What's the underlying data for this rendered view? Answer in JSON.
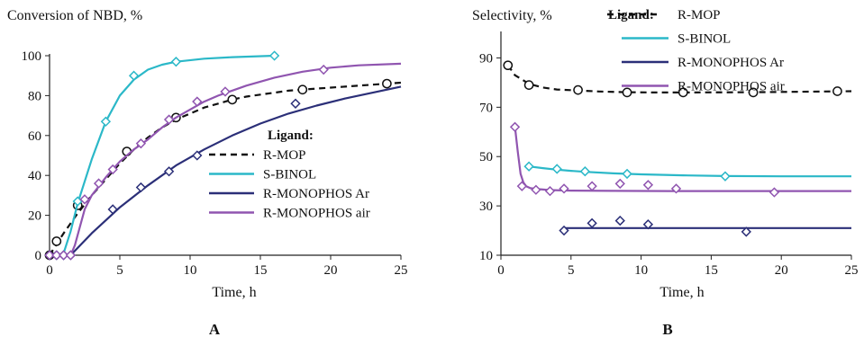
{
  "colors": {
    "R-MOP": "#111111",
    "S-BINOL": "#2bb8c8",
    "R-MONOPHOS Ar": "#2b2f78",
    "R-MONOPHOS air": "#9055b0"
  },
  "markers": {
    "R-MOP": "circle",
    "S-BINOL": "diamond",
    "R-MONOPHOS Ar": "diamond",
    "R-MONOPHOS air": "diamond"
  },
  "chart_data": [
    {
      "panel_label": "A",
      "type": "line",
      "title": "Conversion of NBD, %",
      "xlabel": "Time, h",
      "ylabel": "",
      "xlim": [
        0,
        25
      ],
      "ylim": [
        0,
        100
      ],
      "xticks": [
        "0",
        "5",
        "10",
        "15",
        "20",
        "25"
      ],
      "yticks": [
        "0",
        "20",
        "40",
        "60",
        "80",
        "100"
      ],
      "legend": {
        "title": "Ligand:",
        "placement": "bottom-right",
        "entries": [
          "R-MOP",
          "S-BINOL",
          "R-MONOPHOS Ar",
          "R-MONOPHOS air"
        ]
      },
      "series": [
        {
          "name": "R-MOP",
          "style": "dashed",
          "points": [
            [
              0,
              0
            ],
            [
              0.5,
              7
            ],
            [
              2,
              25
            ],
            [
              5.5,
              52
            ],
            [
              9,
              69
            ],
            [
              13,
              78
            ],
            [
              18,
              83
            ],
            [
              24,
              86
            ]
          ],
          "curve": [
            [
              0,
              0
            ],
            [
              1,
              11
            ],
            [
              2,
              21
            ],
            [
              3,
              30
            ],
            [
              4,
              38
            ],
            [
              5,
              46
            ],
            [
              6,
              53
            ],
            [
              7,
              59
            ],
            [
              8,
              64
            ],
            [
              9,
              68
            ],
            [
              10,
              71
            ],
            [
              11,
              74
            ],
            [
              12,
              76
            ],
            [
              13,
              78
            ],
            [
              14,
              79.5
            ],
            [
              15,
              80.5
            ],
            [
              16,
              81.5
            ],
            [
              17,
              82.5
            ],
            [
              18,
              83
            ],
            [
              20,
              84
            ],
            [
              22,
              85
            ],
            [
              25,
              86.5
            ]
          ]
        },
        {
          "name": "S-BINOL",
          "style": "solid",
          "points": [
            [
              0,
              0
            ],
            [
              0.5,
              0
            ],
            [
              1,
              0
            ],
            [
              2,
              27
            ],
            [
              4,
              67
            ],
            [
              6,
              90
            ],
            [
              9,
              97
            ],
            [
              16,
              100
            ]
          ],
          "curve": [
            [
              0,
              0
            ],
            [
              0.8,
              0
            ],
            [
              1,
              1
            ],
            [
              1.5,
              12
            ],
            [
              2,
              26
            ],
            [
              3,
              48
            ],
            [
              4,
              67
            ],
            [
              5,
              80
            ],
            [
              6,
              88
            ],
            [
              7,
              93
            ],
            [
              8,
              95.5
            ],
            [
              9,
              97
            ],
            [
              11,
              98.5
            ],
            [
              13,
              99.3
            ],
            [
              16,
              100
            ]
          ]
        },
        {
          "name": "R-MONOPHOS Ar",
          "style": "solid",
          "points": [
            [
              0,
              0
            ],
            [
              0.5,
              0
            ],
            [
              1,
              0
            ],
            [
              1.5,
              0
            ],
            [
              4.5,
              23
            ],
            [
              6.5,
              34
            ],
            [
              8.5,
              42
            ],
            [
              10.5,
              50
            ],
            [
              17.5,
              76
            ]
          ],
          "curve": [
            [
              0,
              0
            ],
            [
              1.5,
              0
            ],
            [
              3,
              11
            ],
            [
              5,
              24
            ],
            [
              7,
              35
            ],
            [
              9,
              45
            ],
            [
              11,
              53
            ],
            [
              13,
              60
            ],
            [
              15,
              66
            ],
            [
              17,
              71
            ],
            [
              19,
              75
            ],
            [
              21,
              78.5
            ],
            [
              23,
              81.5
            ],
            [
              25,
              84.5
            ]
          ]
        },
        {
          "name": "R-MONOPHOS air",
          "style": "solid",
          "points": [
            [
              0,
              0
            ],
            [
              0.5,
              0
            ],
            [
              1,
              0
            ],
            [
              1.5,
              0
            ],
            [
              2.5,
              28
            ],
            [
              3.5,
              36
            ],
            [
              4.5,
              43
            ],
            [
              6.5,
              56
            ],
            [
              8.5,
              68
            ],
            [
              10.5,
              77
            ],
            [
              12.5,
              82
            ],
            [
              19.5,
              93
            ]
          ],
          "curve": [
            [
              0,
              0
            ],
            [
              1.5,
              0
            ],
            [
              1.8,
              5
            ],
            [
              2.5,
              23
            ],
            [
              3,
              30
            ],
            [
              4,
              39
            ],
            [
              5,
              47
            ],
            [
              6,
              53
            ],
            [
              7,
              58
            ],
            [
              8,
              64
            ],
            [
              9,
              69
            ],
            [
              10,
              73
            ],
            [
              11,
              77
            ],
            [
              12,
              80
            ],
            [
              14,
              85
            ],
            [
              16,
              89
            ],
            [
              18,
              92
            ],
            [
              20,
              94
            ],
            [
              22,
              95.2
            ],
            [
              25,
              96
            ]
          ]
        }
      ]
    },
    {
      "panel_label": "B",
      "type": "line",
      "title": "Selectivity, %",
      "xlabel": "Time, h",
      "ylabel": "",
      "xlim": [
        0,
        25
      ],
      "ylim": [
        10,
        100
      ],
      "xticks": [
        "0",
        "5",
        "10",
        "15",
        "20",
        "25"
      ],
      "yticks": [
        "10",
        "30",
        "50",
        "70",
        "90"
      ],
      "legend": {
        "title": "Ligand:",
        "placement": "top-right",
        "entries": [
          "R-MOP",
          "S-BINOL",
          "R-MONOPHOS Ar",
          "R-MONOPHOS air"
        ]
      },
      "series": [
        {
          "name": "R-MOP",
          "style": "dashed",
          "points": [
            [
              0.5,
              87
            ],
            [
              2,
              79
            ],
            [
              5.5,
              77
            ],
            [
              9,
              76
            ],
            [
              13,
              76
            ],
            [
              18,
              76
            ],
            [
              24,
              76.5
            ]
          ],
          "curve": [
            [
              0.5,
              87
            ],
            [
              1,
              83
            ],
            [
              2,
              79.5
            ],
            [
              3,
              78
            ],
            [
              4,
              77.2
            ],
            [
              5.5,
              76.8
            ],
            [
              7,
              76.4
            ],
            [
              9,
              76.1
            ],
            [
              11,
              76
            ],
            [
              13,
              76
            ],
            [
              18,
              76.1
            ],
            [
              25,
              76.5
            ]
          ]
        },
        {
          "name": "S-BINOL",
          "style": "solid",
          "points": [
            [
              2,
              46
            ],
            [
              4,
              45
            ],
            [
              6,
              44
            ],
            [
              9,
              43
            ],
            [
              16,
              42
            ]
          ],
          "curve": [
            [
              2,
              46
            ],
            [
              3,
              45.3
            ],
            [
              4,
              44.7
            ],
            [
              5,
              44.2
            ],
            [
              6,
              43.8
            ],
            [
              8,
              43.2
            ],
            [
              10,
              42.8
            ],
            [
              13,
              42.4
            ],
            [
              16,
              42.1
            ],
            [
              20,
              42
            ],
            [
              25,
              42
            ]
          ]
        },
        {
          "name": "R-MONOPHOS Ar",
          "style": "solid",
          "points": [
            [
              4.5,
              20
            ],
            [
              6.5,
              23
            ],
            [
              8.5,
              24
            ],
            [
              10.5,
              22.5
            ],
            [
              17.5,
              19.5
            ]
          ],
          "curve": [
            [
              4.5,
              21
            ],
            [
              25,
              21
            ]
          ]
        },
        {
          "name": "R-MONOPHOS air",
          "style": "solid",
          "points": [
            [
              1,
              62
            ],
            [
              1.5,
              38
            ],
            [
              2.5,
              36.5
            ],
            [
              3.5,
              36
            ],
            [
              4.5,
              37
            ],
            [
              6.5,
              38
            ],
            [
              8.5,
              39
            ],
            [
              10.5,
              38.5
            ],
            [
              12.5,
              37
            ],
            [
              19.5,
              35.5
            ]
          ],
          "curve": [
            [
              1,
              62
            ],
            [
              1.2,
              52
            ],
            [
              1.4,
              43
            ],
            [
              1.6,
              39.5
            ],
            [
              1.8,
              38
            ],
            [
              2.1,
              37.2
            ],
            [
              2.6,
              36.8
            ],
            [
              3.5,
              36.4
            ],
            [
              5,
              36.2
            ],
            [
              8,
              36.1
            ],
            [
              12,
              36
            ],
            [
              25,
              36
            ]
          ]
        }
      ]
    }
  ]
}
